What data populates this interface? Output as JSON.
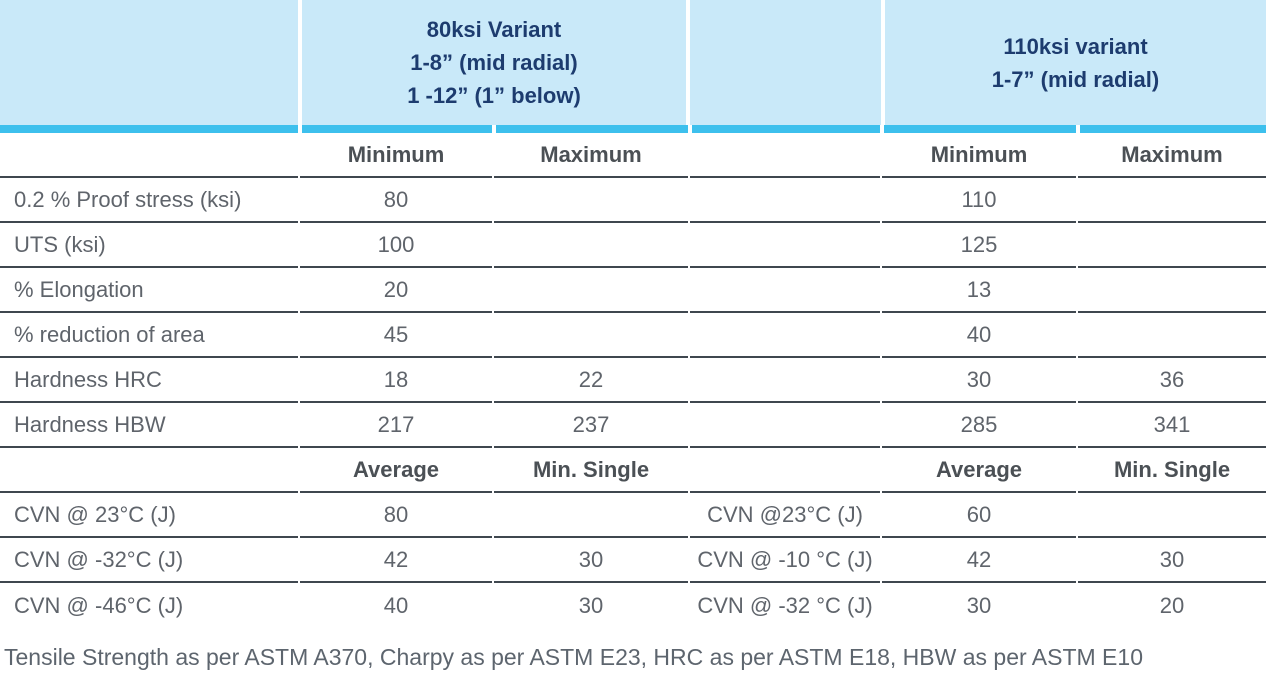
{
  "colors": {
    "header_bg": "#c9e9f9",
    "accent_bar": "#3dc0ed",
    "header_text_navy": "#1d3c6f",
    "body_text": "#5f646b",
    "subheader_text": "#4b5055",
    "row_line": "#3f474f",
    "footer_text": "#5d656e"
  },
  "header": {
    "variant_80": {
      "line1": "80ksi Variant",
      "line2": "1-8” (mid radial)",
      "line3": "1 -12” (1” below)"
    },
    "variant_110": {
      "line1": "110ksi variant",
      "line2": "1-7” (mid radial)"
    }
  },
  "table": {
    "rows": [
      {
        "kind": "subheader",
        "cells": [
          "",
          "Minimum",
          "Maximum",
          "",
          "Minimum",
          "Maximum"
        ]
      },
      {
        "kind": "data",
        "cells": [
          "0.2 % Proof stress (ksi)",
          "80",
          "",
          "",
          "110",
          ""
        ]
      },
      {
        "kind": "data",
        "cells": [
          "UTS (ksi)",
          "100",
          "",
          "",
          "125",
          ""
        ]
      },
      {
        "kind": "data",
        "cells": [
          "% Elongation",
          "20",
          "",
          "",
          "13",
          ""
        ]
      },
      {
        "kind": "data",
        "cells": [
          "% reduction of area",
          "45",
          "",
          "",
          "40",
          ""
        ]
      },
      {
        "kind": "data",
        "cells": [
          "Hardness HRC",
          "18",
          "22",
          "",
          "30",
          "36"
        ]
      },
      {
        "kind": "data",
        "cells": [
          "Hardness HBW",
          "217",
          "237",
          "",
          "285",
          "341"
        ]
      },
      {
        "kind": "subheader",
        "cells": [
          "",
          "Average",
          "Min. Single",
          "",
          "Average",
          "Min. Single"
        ]
      },
      {
        "kind": "data",
        "cells": [
          "CVN @ 23°C (J)",
          "80",
          "",
          "CVN @23°C (J)",
          "60",
          ""
        ]
      },
      {
        "kind": "data",
        "cells": [
          "CVN @ -32°C (J)",
          "42",
          "30",
          "CVN @ -10 °C (J)",
          "42",
          "30"
        ]
      },
      {
        "kind": "data",
        "cells": [
          "CVN @ -46°C (J)",
          "40",
          "30",
          "CVN @ -32 °C (J)",
          "30",
          "20"
        ]
      }
    ]
  },
  "footer": {
    "note": "Tensile Strength as per ASTM A370, Charpy as per ASTM E23, HRC as per ASTM E18, HBW as per ASTM E10"
  }
}
